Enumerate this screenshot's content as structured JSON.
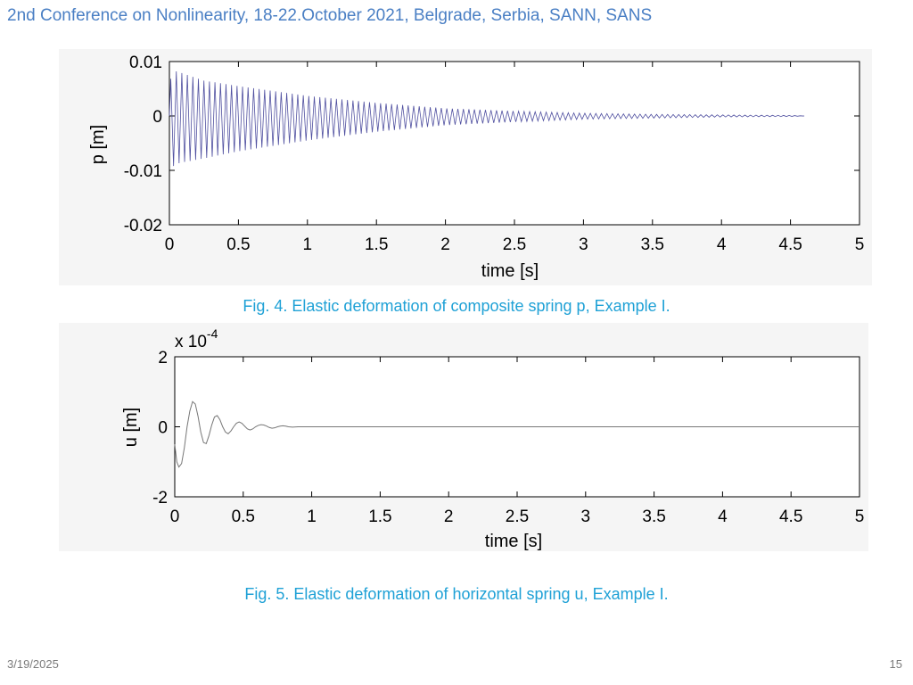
{
  "header": {
    "title": "2nd Conference on Nonlinearity, 18-22.October 2021, Belgrade, Serbia, SANN, SANS"
  },
  "figures": [
    {
      "caption": "Fig. 4. Elastic deformation of composite spring p, Example I."
    },
    {
      "caption": "Fig. 5. Elastic deformation of horizontal spring u, Example I."
    }
  ],
  "footer": {
    "date": "3/19/2025",
    "page": "15"
  },
  "chart_data": [
    {
      "type": "line",
      "title": "",
      "xlabel": "time [s]",
      "ylabel": "p [m]",
      "xlim": [
        0,
        5
      ],
      "ylim": [
        -0.02,
        0.01
      ],
      "x_ticks": [
        "0",
        "0.5",
        "1",
        "1.5",
        "2",
        "2.5",
        "3",
        "3.5",
        "4",
        "4.5",
        "5"
      ],
      "y_ticks": [
        "0.01",
        "0",
        "-0.01",
        "-0.02"
      ],
      "grid": false,
      "line_color": "#5050a0",
      "series": [
        {
          "description_envelope": true,
          "x": [
            0,
            0.05,
            0.1,
            0.25,
            0.5,
            1.0,
            1.5,
            2.0,
            2.5,
            3.0,
            3.5,
            4.0,
            4.5,
            4.6
          ],
          "upper": [
            0.0065,
            0.0082,
            0.0078,
            0.0065,
            0.0055,
            0.0037,
            0.0024,
            0.0014,
            0.0009,
            0.0005,
            0.0003,
            0.0002,
            0.0001,
            0.0
          ],
          "lower": [
            -0.0098,
            -0.0088,
            -0.0085,
            -0.0078,
            -0.0065,
            -0.0045,
            -0.0029,
            -0.0017,
            -0.0011,
            -0.0006,
            -0.0004,
            -0.0002,
            -0.0001,
            0.0
          ],
          "frequency_hz": 25
        }
      ]
    },
    {
      "type": "line",
      "title": "",
      "xlabel": "time [s]",
      "ylabel": "u [m]",
      "y_multiplier": "x 10",
      "y_multiplier_exp": "-4",
      "xlim": [
        0,
        5
      ],
      "ylim": [
        -2,
        2
      ],
      "x_ticks": [
        "0",
        "0.5",
        "1",
        "1.5",
        "2",
        "2.5",
        "3",
        "3.5",
        "4",
        "4.5",
        "5"
      ],
      "y_ticks": [
        "2",
        "0",
        "-2"
      ],
      "grid": false,
      "line_color": "#777777",
      "series": [
        {
          "x": [
            0,
            0.015,
            0.03,
            0.05,
            0.07,
            0.09,
            0.11,
            0.13,
            0.15,
            0.17,
            0.19,
            0.21,
            0.23,
            0.25,
            0.27,
            0.29,
            0.31,
            0.33,
            0.35,
            0.37,
            0.39,
            0.41,
            0.43,
            0.45,
            0.47,
            0.49,
            0.51,
            0.53,
            0.55,
            0.57,
            0.59,
            0.61,
            0.63,
            0.65,
            0.67,
            0.69,
            0.71,
            0.73,
            0.75,
            0.77,
            0.79,
            0.81,
            0.83,
            0.86,
            0.9,
            1.0,
            2.0,
            3.0,
            4.0,
            5.0
          ],
          "y": [
            -0.5,
            -1.0,
            -1.15,
            -1.05,
            -0.6,
            0.0,
            0.45,
            0.72,
            0.65,
            0.3,
            -0.15,
            -0.45,
            -0.48,
            -0.25,
            0.05,
            0.28,
            0.32,
            0.2,
            0.0,
            -0.15,
            -0.2,
            -0.12,
            0.0,
            0.1,
            0.14,
            0.1,
            0.02,
            -0.06,
            -0.09,
            -0.06,
            0.0,
            0.04,
            0.06,
            0.05,
            0.02,
            -0.02,
            -0.04,
            -0.03,
            0.0,
            0.02,
            0.03,
            0.02,
            0.0,
            -0.01,
            0.0,
            0.0,
            0.0,
            0.0,
            0.0,
            0.0
          ]
        }
      ]
    }
  ]
}
